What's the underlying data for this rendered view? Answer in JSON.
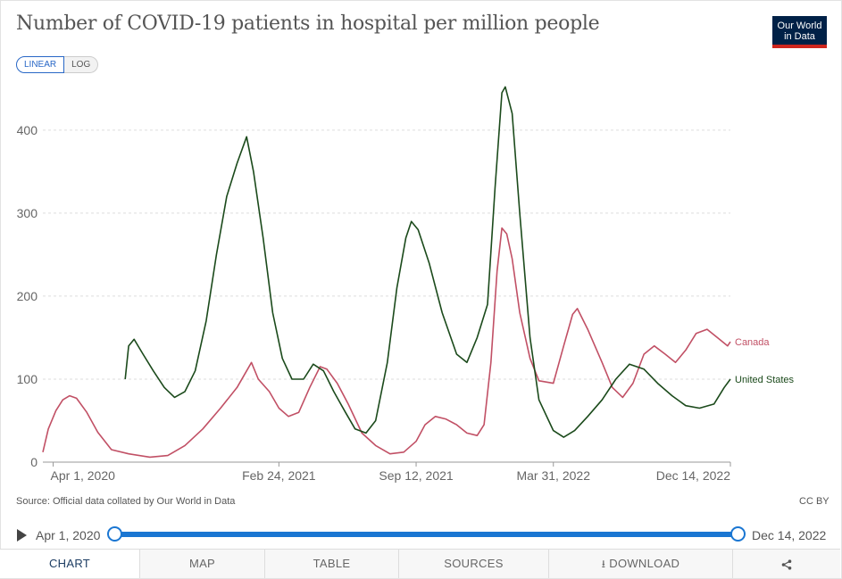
{
  "title": "Number of COVID-19 patients in hospital per million people",
  "logo": {
    "line1": "Our World",
    "line2": "in Data"
  },
  "scale": {
    "linear": "LINEAR",
    "log": "LOG",
    "active": "linear"
  },
  "source": "Source: Official data collated by Our World in Data",
  "license": "CC BY",
  "timeline": {
    "start": "Apr 1, 2020",
    "end": "Dec 14, 2022",
    "start_fraction": 0,
    "end_fraction": 1
  },
  "tabs": {
    "chart": "CHART",
    "map": "MAP",
    "table": "TABLE",
    "sources": "SOURCES",
    "download": "DOWNLOAD",
    "share_icon": "share-icon",
    "download_icon": "download-icon"
  },
  "chart_data": {
    "type": "line",
    "x_type": "date",
    "xlim": [
      "2020-03-17",
      "2022-12-14"
    ],
    "ylim": [
      0,
      460
    ],
    "yticks": [
      0,
      100,
      200,
      300,
      400
    ],
    "xticks": [
      {
        "date": "2020-04-01",
        "label": "Apr 1, 2020"
      },
      {
        "date": "2021-02-24",
        "label": "Feb 24, 2021"
      },
      {
        "date": "2021-09-12",
        "label": "Sep 12, 2021"
      },
      {
        "date": "2022-03-31",
        "label": "Mar 31, 2022"
      },
      {
        "date": "2022-12-14",
        "label": "Dec 14, 2022"
      }
    ],
    "grid": true,
    "legend": "end-of-line labels",
    "series": [
      {
        "name": "Canada",
        "color": "#c15065",
        "points": [
          [
            "2020-03-17",
            12
          ],
          [
            "2020-03-25",
            40
          ],
          [
            "2020-04-05",
            62
          ],
          [
            "2020-04-15",
            75
          ],
          [
            "2020-04-25",
            80
          ],
          [
            "2020-05-05",
            77
          ],
          [
            "2020-05-20",
            60
          ],
          [
            "2020-06-05",
            36
          ],
          [
            "2020-06-25",
            15
          ],
          [
            "2020-07-20",
            10
          ],
          [
            "2020-08-20",
            6
          ],
          [
            "2020-09-15",
            8
          ],
          [
            "2020-10-10",
            20
          ],
          [
            "2020-11-05",
            40
          ],
          [
            "2020-12-01",
            65
          ],
          [
            "2020-12-25",
            90
          ],
          [
            "2021-01-15",
            120
          ],
          [
            "2021-01-25",
            100
          ],
          [
            "2021-02-10",
            85
          ],
          [
            "2021-02-24",
            65
          ],
          [
            "2021-03-10",
            55
          ],
          [
            "2021-03-25",
            60
          ],
          [
            "2021-04-10",
            90
          ],
          [
            "2021-04-25",
            115
          ],
          [
            "2021-05-05",
            112
          ],
          [
            "2021-05-20",
            95
          ],
          [
            "2021-06-05",
            70
          ],
          [
            "2021-06-25",
            35
          ],
          [
            "2021-07-15",
            20
          ],
          [
            "2021-08-05",
            10
          ],
          [
            "2021-08-25",
            12
          ],
          [
            "2021-09-12",
            25
          ],
          [
            "2021-09-25",
            45
          ],
          [
            "2021-10-10",
            55
          ],
          [
            "2021-10-25",
            52
          ],
          [
            "2021-11-10",
            45
          ],
          [
            "2021-11-25",
            35
          ],
          [
            "2021-12-10",
            32
          ],
          [
            "2021-12-20",
            45
          ],
          [
            "2021-12-30",
            120
          ],
          [
            "2022-01-08",
            230
          ],
          [
            "2022-01-15",
            282
          ],
          [
            "2022-01-22",
            275
          ],
          [
            "2022-01-30",
            245
          ],
          [
            "2022-02-10",
            180
          ],
          [
            "2022-02-25",
            125
          ],
          [
            "2022-03-10",
            98
          ],
          [
            "2022-03-31",
            95
          ],
          [
            "2022-04-15",
            140
          ],
          [
            "2022-04-28",
            178
          ],
          [
            "2022-05-05",
            185
          ],
          [
            "2022-05-20",
            160
          ],
          [
            "2022-06-10",
            120
          ],
          [
            "2022-06-25",
            90
          ],
          [
            "2022-07-10",
            78
          ],
          [
            "2022-07-25",
            95
          ],
          [
            "2022-08-10",
            130
          ],
          [
            "2022-08-25",
            140
          ],
          [
            "2022-09-10",
            130
          ],
          [
            "2022-09-25",
            120
          ],
          [
            "2022-10-10",
            135
          ],
          [
            "2022-10-25",
            155
          ],
          [
            "2022-11-10",
            160
          ],
          [
            "2022-11-25",
            150
          ],
          [
            "2022-12-10",
            140
          ],
          [
            "2022-12-14",
            145
          ]
        ],
        "end_label": "Canada"
      },
      {
        "name": "United States",
        "color": "#1b4a1b",
        "points": [
          [
            "2020-07-15",
            100
          ],
          [
            "2020-07-20",
            140
          ],
          [
            "2020-07-28",
            148
          ],
          [
            "2020-08-10",
            130
          ],
          [
            "2020-08-25",
            110
          ],
          [
            "2020-09-10",
            90
          ],
          [
            "2020-09-25",
            78
          ],
          [
            "2020-10-10",
            85
          ],
          [
            "2020-10-25",
            110
          ],
          [
            "2020-11-10",
            170
          ],
          [
            "2020-11-25",
            250
          ],
          [
            "2020-12-10",
            320
          ],
          [
            "2020-12-25",
            360
          ],
          [
            "2021-01-08",
            392
          ],
          [
            "2021-01-18",
            350
          ],
          [
            "2021-02-01",
            270
          ],
          [
            "2021-02-15",
            180
          ],
          [
            "2021-03-01",
            125
          ],
          [
            "2021-03-15",
            100
          ],
          [
            "2021-04-01",
            100
          ],
          [
            "2021-04-15",
            118
          ],
          [
            "2021-04-30",
            110
          ],
          [
            "2021-05-15",
            85
          ],
          [
            "2021-06-01",
            60
          ],
          [
            "2021-06-15",
            40
          ],
          [
            "2021-07-01",
            35
          ],
          [
            "2021-07-15",
            50
          ],
          [
            "2021-08-01",
            120
          ],
          [
            "2021-08-15",
            210
          ],
          [
            "2021-08-28",
            270
          ],
          [
            "2021-09-05",
            290
          ],
          [
            "2021-09-15",
            280
          ],
          [
            "2021-10-01",
            240
          ],
          [
            "2021-10-20",
            180
          ],
          [
            "2021-11-10",
            130
          ],
          [
            "2021-11-25",
            120
          ],
          [
            "2021-12-10",
            150
          ],
          [
            "2021-12-25",
            190
          ],
          [
            "2022-01-05",
            330
          ],
          [
            "2022-01-15",
            445
          ],
          [
            "2022-01-20",
            452
          ],
          [
            "2022-01-30",
            420
          ],
          [
            "2022-02-10",
            300
          ],
          [
            "2022-02-25",
            150
          ],
          [
            "2022-03-10",
            75
          ],
          [
            "2022-03-31",
            38
          ],
          [
            "2022-04-15",
            30
          ],
          [
            "2022-05-01",
            38
          ],
          [
            "2022-05-20",
            55
          ],
          [
            "2022-06-10",
            75
          ],
          [
            "2022-06-30",
            100
          ],
          [
            "2022-07-20",
            118
          ],
          [
            "2022-08-10",
            112
          ],
          [
            "2022-08-30",
            95
          ],
          [
            "2022-09-20",
            80
          ],
          [
            "2022-10-10",
            68
          ],
          [
            "2022-10-30",
            65
          ],
          [
            "2022-11-20",
            70
          ],
          [
            "2022-12-05",
            90
          ],
          [
            "2022-12-14",
            100
          ]
        ],
        "end_label": "United States"
      }
    ]
  }
}
